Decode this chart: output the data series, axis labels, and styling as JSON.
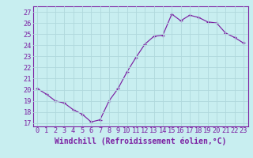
{
  "x": [
    0,
    1,
    2,
    3,
    4,
    5,
    6,
    7,
    8,
    9,
    10,
    11,
    12,
    13,
    14,
    15,
    16,
    17,
    18,
    19,
    20,
    21,
    22,
    23
  ],
  "y": [
    20.1,
    19.6,
    19.0,
    18.8,
    18.2,
    17.8,
    17.1,
    17.3,
    19.0,
    20.1,
    21.6,
    22.9,
    24.1,
    24.8,
    24.9,
    26.8,
    26.2,
    26.7,
    26.5,
    26.1,
    26.0,
    25.1,
    24.7,
    24.2
  ],
  "color": "#7b1fa2",
  "bg_color": "#c8eef0",
  "grid_color": "#b0d8dc",
  "xlabel": "Windchill (Refroidissement éolien,°C)",
  "xlabel_fontsize": 7.0,
  "tick_fontsize": 6.2,
  "ylabel_ticks": [
    17,
    18,
    19,
    20,
    21,
    22,
    23,
    24,
    25,
    26,
    27
  ],
  "xlim": [
    -0.5,
    23.5
  ],
  "ylim": [
    16.7,
    27.5
  ],
  "marker": "+"
}
